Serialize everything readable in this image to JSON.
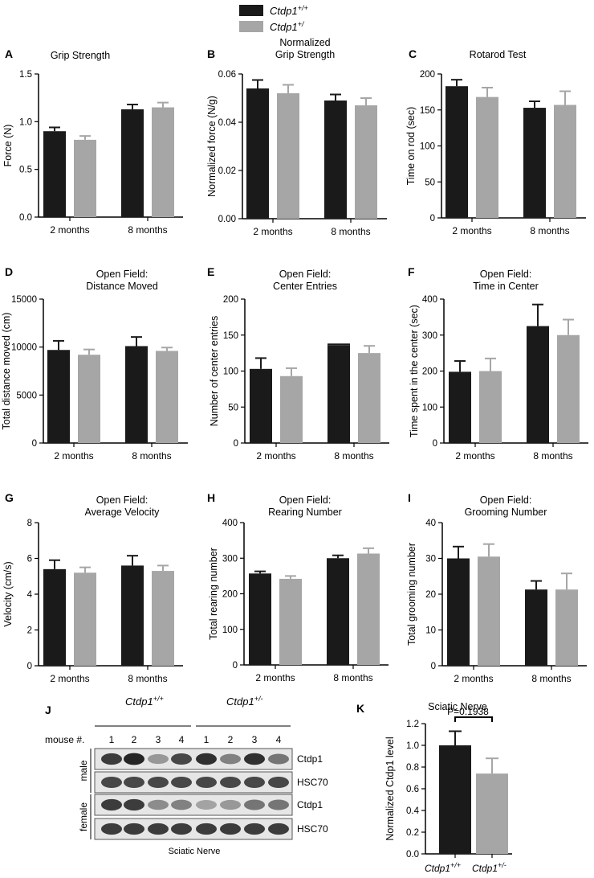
{
  "legend": {
    "entries": [
      {
        "genotype": "Ctdp1",
        "sup": "+/+",
        "color": "#1a1a1a"
      },
      {
        "genotype": "Ctdp1",
        "sup": "+/",
        "color": "#a6a6a6"
      }
    ]
  },
  "colors": {
    "wt": "#1a1a1a",
    "het": "#a6a6a6"
  },
  "chart_data": [
    {
      "panel": "A",
      "type": "bar",
      "title": "Grip Strength",
      "ylabel": "Force (N)",
      "categories": [
        "2 months",
        "8 months"
      ],
      "ylim": [
        0,
        1.5
      ],
      "ytick_labels": [
        "0.0",
        "0.5",
        "1.0",
        "1.5"
      ],
      "series": [
        {
          "values": [
            0.9,
            1.13
          ],
          "errors": [
            0.04,
            0.05
          ]
        },
        {
          "values": [
            0.81,
            1.15
          ],
          "errors": [
            0.04,
            0.05
          ]
        }
      ]
    },
    {
      "panel": "B",
      "type": "bar",
      "title": "Normalized\nGrip Strength",
      "ylabel": "Normalized force (N/g)",
      "categories": [
        "2 months",
        "8 months"
      ],
      "ylim": [
        0,
        0.06
      ],
      "ytick_labels": [
        "0.00",
        "0.02",
        "0.04",
        "0.06"
      ],
      "series": [
        {
          "values": [
            0.054,
            0.049
          ],
          "errors": [
            0.0035,
            0.0025
          ]
        },
        {
          "values": [
            0.052,
            0.047
          ],
          "errors": [
            0.0035,
            0.003
          ]
        }
      ]
    },
    {
      "panel": "C",
      "type": "bar",
      "title": "Rotarod Test",
      "ylabel": "Time on rod (sec)",
      "categories": [
        "2 months",
        "8 months"
      ],
      "ylim": [
        0,
        200
      ],
      "ytick_labels": [
        "0",
        "50",
        "100",
        "150",
        "200"
      ],
      "series": [
        {
          "values": [
            183,
            153
          ],
          "errors": [
            9,
            9
          ]
        },
        {
          "values": [
            168,
            157
          ],
          "errors": [
            13,
            19
          ]
        }
      ]
    },
    {
      "panel": "D",
      "type": "bar",
      "title": "Open Field:\nDistance Moved",
      "ylabel": "Total distance moved (cm)",
      "categories": [
        "2 months",
        "8 months"
      ],
      "ylim": [
        0,
        15000
      ],
      "ytick_labels": [
        "0",
        "5000",
        "10000",
        "15000"
      ],
      "series": [
        {
          "values": [
            9700,
            10100
          ],
          "errors": [
            950,
            950
          ]
        },
        {
          "values": [
            9200,
            9600
          ],
          "errors": [
            550,
            350
          ]
        }
      ]
    },
    {
      "panel": "E",
      "type": "bar",
      "title": "Open Field:\nCenter Entries",
      "ylabel": "Number of center entries",
      "categories": [
        "2 months",
        "8 months"
      ],
      "ylim": [
        0,
        200
      ],
      "ytick_labels": [
        "0",
        "50",
        "100",
        "150",
        "200"
      ],
      "series": [
        {
          "values": [
            103,
            136
          ],
          "errors": [
            15,
            0
          ]
        },
        {
          "values": [
            93,
            125
          ],
          "errors": [
            11,
            10
          ]
        }
      ]
    },
    {
      "panel": "F",
      "type": "bar",
      "title": "Open Field:\nTime in Center",
      "ylabel": "Time spent in the center (sec)",
      "categories": [
        "2 months",
        "8 months"
      ],
      "ylim": [
        0,
        400
      ],
      "ytick_labels": [
        "0",
        "100",
        "200",
        "300",
        "400"
      ],
      "series": [
        {
          "values": [
            198,
            325
          ],
          "errors": [
            30,
            60
          ]
        },
        {
          "values": [
            200,
            300
          ],
          "errors": [
            35,
            43
          ]
        }
      ]
    },
    {
      "panel": "G",
      "type": "bar",
      "title": "Open Field:\nAverage Velocity",
      "ylabel": "Velocity (cm/s)",
      "categories": [
        "2 months",
        "8 months"
      ],
      "ylim": [
        0,
        8
      ],
      "ytick_labels": [
        "0",
        "2",
        "4",
        "6",
        "8"
      ],
      "series": [
        {
          "values": [
            5.4,
            5.6
          ],
          "errors": [
            0.5,
            0.55
          ]
        },
        {
          "values": [
            5.2,
            5.3
          ],
          "errors": [
            0.3,
            0.3
          ]
        }
      ]
    },
    {
      "panel": "H",
      "type": "bar",
      "title": "Open Field:\nRearing Number",
      "ylabel": "Total rearing number",
      "categories": [
        "2 months",
        "8 months"
      ],
      "ylim": [
        0,
        400
      ],
      "ytick_labels": [
        "0",
        "100",
        "200",
        "300",
        "400"
      ],
      "series": [
        {
          "values": [
            257,
            300
          ],
          "errors": [
            6,
            8
          ]
        },
        {
          "values": [
            242,
            313
          ],
          "errors": [
            8,
            15
          ]
        }
      ]
    },
    {
      "panel": "I",
      "type": "bar",
      "title": "Open Field:\nGrooming Number",
      "ylabel": "Total grooming number",
      "categories": [
        "2 months",
        "8 months"
      ],
      "ylim": [
        0,
        40
      ],
      "ytick_labels": [
        "0",
        "10",
        "20",
        "30",
        "40"
      ],
      "series": [
        {
          "values": [
            30,
            21.3
          ],
          "errors": [
            3.3,
            2.4
          ]
        },
        {
          "values": [
            30.5,
            21.3
          ],
          "errors": [
            3.5,
            4.5
          ]
        }
      ]
    },
    {
      "panel": "K",
      "type": "bar",
      "title": "Sciatic Nerve",
      "ylabel": "Normalized Ctdp1 level",
      "categories": [
        {
          "genotype": "Ctdp1",
          "sup": "+/+"
        },
        {
          "genotype": "Ctdp1",
          "sup": "+/-"
        }
      ],
      "ylim": [
        0,
        1.2
      ],
      "ytick_labels": [
        "0.0",
        "0.2",
        "0.4",
        "0.6",
        "0.8",
        "1.0",
        "1.2"
      ],
      "series": [
        {
          "values": [
            1.0,
            0.74
          ],
          "errors": [
            0.13,
            0.14
          ]
        }
      ],
      "annotation": "P=0.1938"
    }
  ],
  "blot": {
    "panel": "J",
    "group_labels": [
      {
        "genotype": "Ctdp1",
        "sup": "+/+"
      },
      {
        "genotype": "Ctdp1",
        "sup": "+/-"
      }
    ],
    "mouse_label": "mouse #.",
    "lane_numbers": [
      "1",
      "2",
      "3",
      "4",
      "1",
      "2",
      "3",
      "4"
    ],
    "sections": [
      {
        "sex": "male",
        "rows": [
          {
            "label": "Ctdp1",
            "intensity": [
              0.85,
              0.95,
              0.45,
              0.8,
              0.9,
              0.55,
              0.9,
              0.6
            ]
          },
          {
            "label": "HSC70",
            "intensity": [
              0.8,
              0.8,
              0.8,
              0.8,
              0.8,
              0.8,
              0.8,
              0.8
            ]
          }
        ]
      },
      {
        "sex": "female",
        "rows": [
          {
            "label": "Ctdp1",
            "intensity": [
              0.85,
              0.85,
              0.5,
              0.55,
              0.4,
              0.45,
              0.6,
              0.6
            ]
          },
          {
            "label": "HSC70",
            "intensity": [
              0.85,
              0.85,
              0.85,
              0.85,
              0.85,
              0.85,
              0.85,
              0.85
            ]
          }
        ]
      }
    ],
    "caption": "Sciatic Nerve"
  }
}
